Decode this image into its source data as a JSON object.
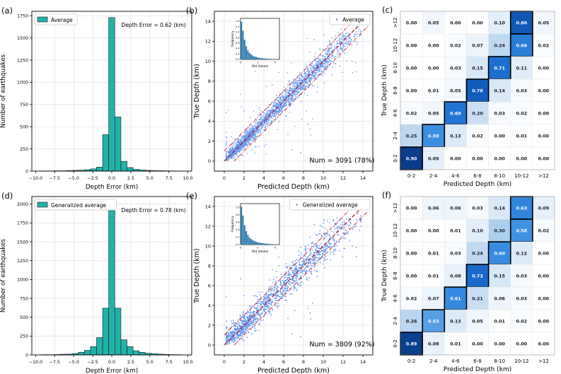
{
  "chart_data": [
    {
      "panel": "(a)",
      "type": "bar",
      "xlabel": "Depth Error (km)",
      "ylabel": "Number of earthquakes",
      "legend": "Average",
      "annotation": "Depth Error = 0.62 (km)",
      "xlim": [
        -10.5,
        10.5
      ],
      "ylim": [
        0,
        1800
      ],
      "xticks": [
        -10.0,
        -7.5,
        -5.0,
        -2.5,
        0.0,
        2.5,
        5.0,
        7.5,
        10.0
      ],
      "xtick_labels": [
        "−10.0",
        "−7.5",
        "−5.0",
        "−2.5",
        "0.0",
        "2.5",
        "5.0",
        "7.5",
        "10.0"
      ],
      "yticks": [
        0,
        250,
        500,
        750,
        1000,
        1250,
        1500,
        1750
      ],
      "bin_width": 0.8,
      "bins": [
        -8.8,
        -8.0,
        -7.2,
        -6.4,
        -5.6,
        -4.8,
        -4.0,
        -3.2,
        -2.4,
        -1.6,
        -0.8,
        0.0,
        0.8,
        1.6,
        2.4,
        3.2,
        4.0,
        4.8,
        5.6,
        6.4,
        7.2,
        8.0,
        8.8
      ],
      "values": [
        2,
        2,
        3,
        3,
        5,
        8,
        10,
        15,
        25,
        45,
        410,
        1730,
        610,
        110,
        40,
        20,
        12,
        8,
        5,
        4,
        3,
        2,
        1
      ]
    },
    {
      "panel": "(b)",
      "type": "scatter",
      "xlabel": "Predicted Depth (km)",
      "ylabel": "True Depth (km)",
      "legend": "Average",
      "annotation": "Num = 3091 (78%)",
      "xlim": [
        -1,
        15
      ],
      "ylim": [
        -1,
        15
      ],
      "ticks": [
        0,
        2,
        4,
        6,
        8,
        10,
        12,
        14
      ],
      "n_points": 3091,
      "identity_line": [
        [
          0,
          0
        ],
        [
          14.5,
          14.5
        ]
      ],
      "band_offset": 1.0,
      "inset": {
        "type": "bar",
        "xlabel": "Std Values",
        "ylabel": "Frequency",
        "xticks": [
          0,
          2,
          4
        ],
        "yticks": [
          0.0,
          0.2,
          0.4,
          0.6,
          0.8,
          1.0,
          1.2,
          1.4
        ],
        "xlim": [
          0,
          4.5
        ],
        "ylim": [
          0,
          1.5
        ],
        "values": [
          1.38,
          1.05,
          0.72,
          0.48,
          0.33,
          0.24,
          0.18,
          0.14,
          0.11,
          0.09,
          0.07,
          0.06,
          0.05,
          0.04,
          0.035,
          0.03,
          0.025,
          0.02,
          0.02,
          0.015,
          0.012,
          0.01,
          0.008,
          0.006
        ]
      }
    },
    {
      "panel": "(c)",
      "type": "heatmap",
      "xlabel": "Predicted Depth (km)",
      "ylabel": "True Depth (km)",
      "labels": [
        "0-2",
        "2-4",
        "4-6",
        "6-8",
        "8-10",
        "10-12",
        ">12"
      ],
      "matrix_rows_top_to_bottom": [
        [
          "0.00",
          "0.05",
          "0.00",
          "0.00",
          "0.10",
          "0.80",
          "0.05"
        ],
        [
          "0.00",
          "0.00",
          "0.02",
          "0.07",
          "0.24",
          "0.66",
          "0.02"
        ],
        [
          "0.00",
          "0.00",
          "0.03",
          "0.15",
          "0.71",
          "0.11",
          "0.00"
        ],
        [
          "0.00",
          "0.01",
          "0.05",
          "0.78",
          "0.14",
          "0.03",
          "0.00"
        ],
        [
          "0.02",
          "0.05",
          "0.69",
          "0.20",
          "0.03",
          "0.02",
          "0.00"
        ],
        [
          "0.25",
          "0.59",
          "0.13",
          "0.02",
          "0.00",
          "0.01",
          "0.00"
        ],
        [
          "0.90",
          "0.09",
          "0.00",
          "0.00",
          "0.00",
          "0.00",
          "0.00"
        ]
      ]
    },
    {
      "panel": "(d)",
      "type": "bar",
      "xlabel": "Depth Error (km)",
      "ylabel": "Number of earthquakes",
      "legend": "Generalized average",
      "annotation": "Depth Error = 0.78 (km)",
      "xlim": [
        -10.5,
        10.5
      ],
      "ylim": [
        0,
        2100
      ],
      "xticks": [
        -10.0,
        -7.5,
        -5.0,
        -2.5,
        0.0,
        2.5,
        5.0,
        7.5,
        10.0
      ],
      "xtick_labels": [
        "−10.0",
        "−7.5",
        "−5.0",
        "−2.5",
        "0.0",
        "2.5",
        "5.0",
        "7.5",
        "10.0"
      ],
      "yticks": [
        0,
        250,
        500,
        750,
        1000,
        1250,
        1500,
        1750,
        2000
      ],
      "bin_width": 0.8,
      "bins": [
        -8.8,
        -8.0,
        -7.2,
        -6.4,
        -5.6,
        -4.8,
        -4.0,
        -3.2,
        -2.4,
        -1.6,
        -0.8,
        0.0,
        0.8,
        1.6,
        2.4,
        3.2,
        4.0,
        4.8,
        5.6,
        6.4,
        7.2,
        8.0,
        8.8
      ],
      "values": [
        3,
        3,
        5,
        8,
        10,
        18,
        35,
        60,
        110,
        230,
        620,
        2010,
        620,
        200,
        110,
        55,
        35,
        22,
        15,
        10,
        6,
        4,
        3
      ]
    },
    {
      "panel": "(e)",
      "type": "scatter",
      "xlabel": "Predicted Depth (km)",
      "ylabel": "True Depth (km)",
      "legend": "Generalized average",
      "annotation": "Num = 3809 (92%)",
      "xlim": [
        -1,
        15
      ],
      "ylim": [
        -1,
        15
      ],
      "ticks": [
        0,
        2,
        4,
        6,
        8,
        10,
        12,
        14
      ],
      "n_points": 3809,
      "identity_line": [
        [
          0,
          0
        ],
        [
          14.5,
          14.5
        ]
      ],
      "band_offset": 1.0,
      "inset": {
        "type": "bar",
        "xlabel": "Std Values",
        "ylabel": "Frequency",
        "xticks": [
          0,
          2,
          4
        ],
        "yticks": [
          0.0,
          0.2,
          0.4,
          0.6,
          0.8,
          1.0
        ],
        "xlim": [
          0,
          4.5
        ],
        "ylim": [
          0,
          1.1
        ],
        "values": [
          1.02,
          0.78,
          0.52,
          0.36,
          0.26,
          0.19,
          0.15,
          0.12,
          0.1,
          0.08,
          0.065,
          0.055,
          0.045,
          0.04,
          0.032,
          0.028,
          0.023,
          0.019,
          0.016,
          0.013,
          0.011,
          0.009,
          0.007,
          0.005
        ]
      }
    },
    {
      "panel": "(f)",
      "type": "heatmap",
      "xlabel": "Predicted Depth (km)",
      "ylabel": "True Depth (km)",
      "labels": [
        "0-2",
        "2-4",
        "4-6",
        "6-8",
        "8-10",
        "10-12",
        ">12"
      ],
      "matrix_rows_top_to_bottom": [
        [
          "0.00",
          "0.06",
          "0.06",
          "0.03",
          "0.14",
          "0.63",
          "0.09"
        ],
        [
          "0.00",
          "0.00",
          "0.01",
          "0.10",
          "0.30",
          "0.58",
          "0.02"
        ],
        [
          "0.00",
          "0.01",
          "0.03",
          "0.24",
          "0.60",
          "0.12",
          "0.00"
        ],
        [
          "0.00",
          "0.01",
          "0.08",
          "0.73",
          "0.15",
          "0.03",
          "0.00"
        ],
        [
          "0.02",
          "0.07",
          "0.61",
          "0.21",
          "0.06",
          "0.03",
          "0.00"
        ],
        [
          "0.26",
          "0.53",
          "0.13",
          "0.05",
          "0.01",
          "0.02",
          "0.00"
        ],
        [
          "0.89",
          "0.08",
          "0.01",
          "0.00",
          "0.00",
          "0.00",
          "0.00"
        ]
      ]
    }
  ],
  "colors": {
    "bar_fill": "#20b2aa",
    "bar_edge": "#1a1a1a",
    "scatter": "#6495ed",
    "identity_line": "#b22222",
    "band_line": "#cc3333",
    "heat_low": "#ffffff",
    "heat_high": "#08306b"
  }
}
